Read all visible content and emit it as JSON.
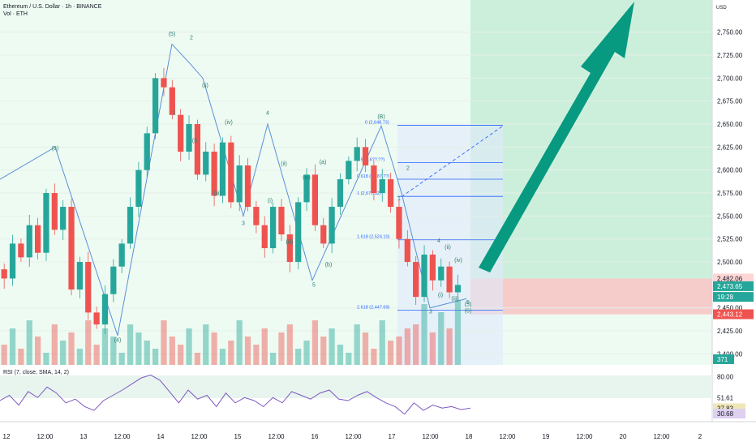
{
  "header": {
    "title": "Ethereum / U.S. Dollar · 1h · BINANCE",
    "volume_label": "Vol · ETH"
  },
  "rsi_header": "RSI (7, close, SMA, 14, 2)",
  "currency": "USD",
  "colors": {
    "up": "#26a69a",
    "down": "#ef5350",
    "wave_line": "#5b8fd6",
    "wave_label": "#2e7d6f",
    "fib_line": "#2962ff",
    "profit_zone": "#c6ecd6",
    "loss_zone": "#f6c6c6",
    "arrow": "#089981",
    "rsi_line": "#7e57c2",
    "rsi_sma": "#e0d38c"
  },
  "chart_data": [
    {
      "type": "candlestick",
      "title": "Ethereum / U.S. Dollar · 1h · BINANCE",
      "ylim": [
        2388,
        2785
      ],
      "y_ticks": [
        "2,750.00",
        "2,725.00",
        "2,700.00",
        "2,675.00",
        "2,650.00",
        "2,625.00",
        "2,600.00",
        "2,575.00",
        "2,550.00",
        "2,525.00",
        "2,500.00",
        "2,450.00",
        "2,425.00",
        "2,400.00"
      ],
      "y_tick_values": [
        2750,
        2725,
        2700,
        2675,
        2650,
        2625,
        2600,
        2575,
        2550,
        2525,
        2500,
        2450,
        2425,
        2400
      ],
      "x_ticks": [
        "12",
        "12:00",
        "13",
        "12:00",
        "14",
        "12:00",
        "15",
        "12:00",
        "16",
        "12:00",
        "17",
        "12:00",
        "18",
        "12:00",
        "19",
        "12:00",
        "20",
        "12:00",
        "2"
      ],
      "candle_path": [
        2492,
        2482,
        2520,
        2505,
        2540,
        2510,
        2575,
        2535,
        2560,
        2470,
        2500,
        2445,
        2432,
        2465,
        2495,
        2520,
        2560,
        2600,
        2640,
        2700,
        2690,
        2660,
        2620,
        2650,
        2595,
        2620,
        2572,
        2630,
        2565,
        2605,
        2560,
        2540,
        2515,
        2560,
        2530,
        2500,
        2565,
        2595,
        2540,
        2520,
        2560,
        2590,
        2610,
        2625,
        2605,
        2575,
        2590,
        2560,
        2525,
        2500,
        2462,
        2508,
        2480,
        2495,
        2467,
        2475
      ],
      "price_labels": [
        {
          "text": "2,482.06",
          "value": 2482.06,
          "kind": "level"
        },
        {
          "text": "2,473.65",
          "value": 2473.65,
          "kind": "current"
        },
        {
          "text": "19:28",
          "value": 2462,
          "kind": "timer"
        },
        {
          "text": "2,443.12",
          "value": 2443.12,
          "kind": "stop"
        }
      ],
      "volume_label": "371",
      "fib_labels": [
        {
          "text": "0 (2,648.73)",
          "value": 2648.73
        },
        {
          "text": "0.5 (2,6??.??)",
          "value": 2608
        },
        {
          "text": "0.618 (2,587.??)",
          "value": 2590
        },
        {
          "text": "1 (2,571.32)",
          "value": 2571.32
        },
        {
          "text": "1.618 (2,524.10)",
          "value": 2524.1
        },
        {
          "text": "2.618 (2,447.69)",
          "value": 2447.69
        }
      ],
      "wave_labels": [
        "(5)",
        "(5)",
        "(4)",
        "1",
        "2",
        "(i)",
        "(ii)",
        "(iii)",
        "(iv)",
        "3",
        "4",
        "(i)",
        "(ii)",
        "(iii)",
        "(iv)",
        "(a)",
        "(b)",
        "(B)",
        "5",
        "1",
        "2",
        "3",
        "4",
        "(i)",
        "(ii)",
        "(iii)",
        "(iv)",
        "5",
        "(5)",
        "(6)"
      ]
    },
    {
      "type": "line",
      "title": "RSI (7, close, SMA, 14, 2)",
      "ylim": [
        20,
        90
      ],
      "y_ticks": [
        "80.00",
        "51.61",
        "37.83",
        "30.68"
      ],
      "series": [
        {
          "values": [
            48,
            55,
            42,
            60,
            52,
            66,
            58,
            45,
            50,
            40,
            35,
            48,
            55,
            62,
            70,
            78,
            82,
            75,
            60,
            45,
            62,
            50,
            55,
            40,
            58,
            45,
            52,
            48,
            40,
            52,
            45,
            60,
            55,
            50,
            58,
            62,
            50,
            48,
            55,
            60,
            52,
            45,
            40,
            30,
            45,
            35,
            42,
            38,
            40,
            36,
            38
          ]
        }
      ]
    }
  ]
}
